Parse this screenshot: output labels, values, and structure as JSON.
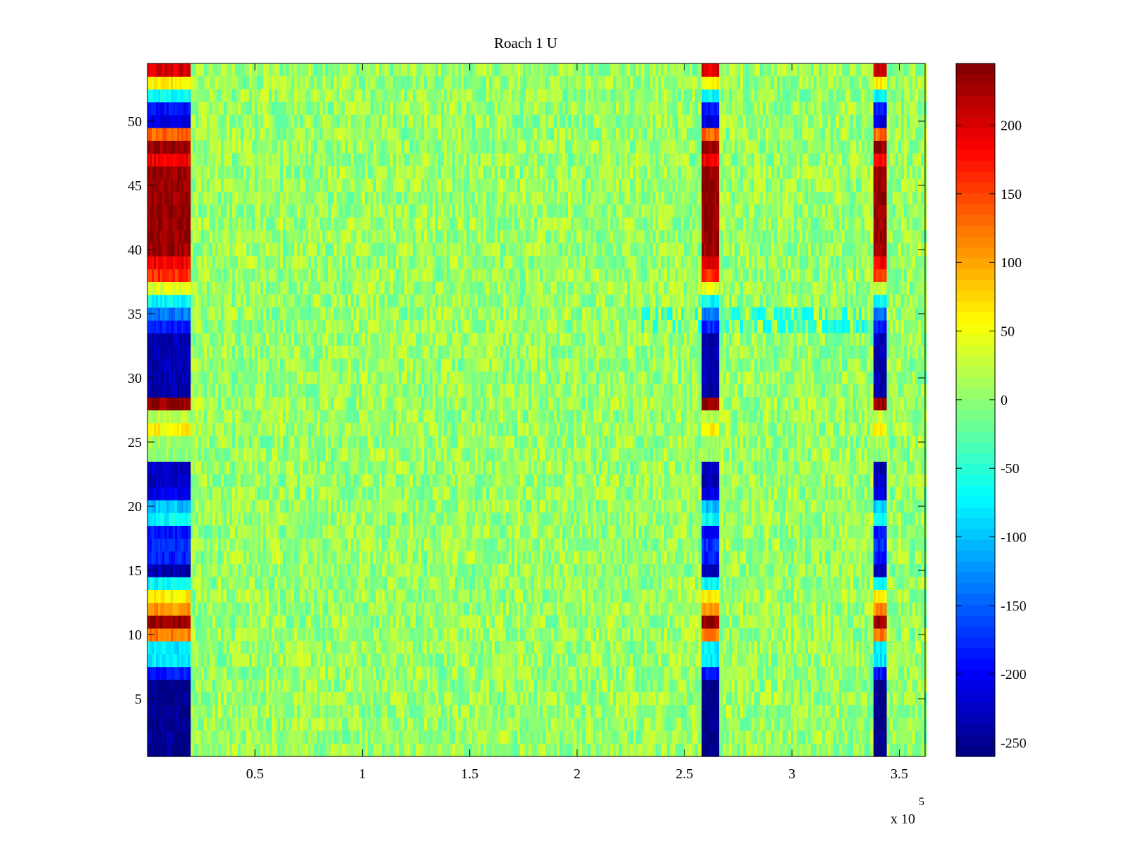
{
  "chart_data": {
    "type": "heatmap",
    "title": "Roach 1 U",
    "xlabel": "",
    "ylabel": "",
    "x_multiplier_label": "x 10",
    "x_multiplier_exponent": "5",
    "xlim": [
      0,
      3.62
    ],
    "ylim": [
      0.5,
      54.5
    ],
    "x_ticks": [
      0.5,
      1,
      1.5,
      2,
      2.5,
      3,
      3.5
    ],
    "x_tick_labels": [
      "0.5",
      "1",
      "1.5",
      "2",
      "2.5",
      "3",
      "3.5"
    ],
    "y_ticks": [
      5,
      10,
      15,
      20,
      25,
      30,
      35,
      40,
      45,
      50
    ],
    "y_tick_labels": [
      "5",
      "10",
      "15",
      "20",
      "25",
      "30",
      "35",
      "40",
      "45",
      "50"
    ],
    "rows": 54,
    "colorbar": {
      "colormap": "jet",
      "range": [
        -260,
        245
      ],
      "ticks": [
        200,
        150,
        100,
        50,
        0,
        -50,
        -100,
        -150,
        -200,
        -250
      ],
      "tick_labels": [
        "200",
        "150",
        "100",
        "50",
        "0",
        "-50",
        "-100",
        "-150",
        "-200",
        "-250"
      ]
    },
    "background_value_range": [
      -30,
      40
    ],
    "bands": [
      {
        "name": "band-1",
        "x_start": 0.0,
        "x_end": 0.2
      },
      {
        "name": "band-2",
        "x_start": 2.58,
        "x_end": 2.66
      },
      {
        "name": "band-3",
        "x_start": 3.38,
        "x_end": 3.44
      }
    ],
    "band_row_values": [
      -255,
      -255,
      -255,
      -255,
      -255,
      -255,
      -190,
      -80,
      -80,
      120,
      235,
      110,
      60,
      -70,
      -235,
      -185,
      -175,
      -190,
      -70,
      -100,
      -210,
      -230,
      -230,
      0,
      10,
      60,
      20,
      235,
      -240,
      -235,
      -235,
      -235,
      -235,
      -180,
      -140,
      -70,
      40,
      160,
      190,
      230,
      235,
      235,
      235,
      235,
      235,
      235,
      190,
      235,
      130,
      -210,
      -190,
      -70,
      60,
      200
    ],
    "anomaly": {
      "row_start": 34,
      "row_end": 35,
      "x_start": 2.28,
      "x_end": 3.38,
      "value": -75
    }
  }
}
